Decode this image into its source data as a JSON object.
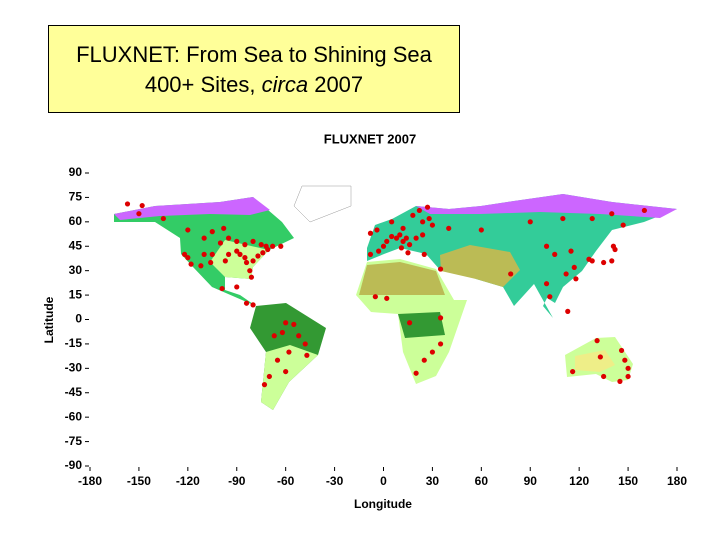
{
  "slide_title": {
    "line1": "FLUXNET: From Sea to Shining Sea",
    "line2_start": "400+ Sites, ",
    "line2_italic": "circa",
    "line2_end": " 2007"
  },
  "chart_data": {
    "type": "scatter",
    "title": "FLUXNET 2007",
    "x_label": "Longitude",
    "y_label": "Latitude",
    "color": "#dd0000",
    "xlim": [
      -180,
      180
    ],
    "ylim": [
      -90,
      90
    ],
    "xticks": [
      -180,
      -150,
      -120,
      -90,
      -60,
      -30,
      0,
      30,
      60,
      90,
      120,
      150,
      180
    ],
    "yticks": [
      -90,
      -75,
      -60,
      -45,
      -30,
      -15,
      0,
      15,
      30,
      45,
      60,
      75,
      90
    ],
    "x": [
      -150,
      -148,
      -157,
      -135,
      -120,
      -105,
      -98,
      -95,
      -90,
      -85,
      -80,
      -75,
      -72,
      -68,
      -63,
      -110,
      -100,
      -105,
      -110,
      -120,
      -122,
      -118,
      -112,
      -106,
      -97,
      -95,
      -90,
      -88,
      -85,
      -84,
      -80,
      -77,
      -74,
      -71,
      -82,
      -81,
      -99,
      -90,
      -84,
      -80,
      -60,
      -55,
      -62,
      -67,
      -52,
      -48,
      -47,
      -58,
      -65,
      -60,
      -70,
      -73,
      -8,
      -3,
      0,
      2,
      5,
      8,
      10,
      12,
      14,
      16,
      20,
      24,
      24,
      28,
      18,
      12,
      -4,
      -8,
      11,
      15,
      25,
      30,
      40,
      22,
      27,
      5,
      -5,
      2,
      16,
      25,
      30,
      35,
      20,
      35,
      35,
      60,
      90,
      110,
      128,
      140,
      160,
      100,
      105,
      115,
      117,
      112,
      118,
      100,
      102,
      113,
      126,
      128,
      135,
      140,
      142,
      141,
      147,
      78,
      131,
      133,
      146,
      148,
      150,
      150,
      145,
      116,
      135
    ],
    "values": [
      65,
      70,
      71,
      62,
      55,
      54,
      56,
      50,
      48,
      46,
      48,
      46,
      45,
      45,
      45,
      50,
      47,
      40,
      40,
      38,
      40,
      34,
      33,
      35,
      36,
      40,
      42,
      40,
      38,
      35,
      36,
      39,
      41,
      43,
      30,
      26,
      19,
      20,
      10,
      9,
      -2,
      -3,
      -8,
      -10,
      -10,
      -15,
      -22,
      -20,
      -25,
      -32,
      -35,
      -40,
      40,
      42,
      45,
      48,
      51,
      50,
      52,
      48,
      50,
      46,
      50,
      52,
      60,
      62,
      64,
      56,
      55,
      53,
      44,
      41,
      40,
      58,
      56,
      67,
      69,
      60,
      14,
      13,
      -2,
      -25,
      -20,
      -15,
      -33,
      31,
      1,
      55,
      60,
      62,
      62,
      65,
      67,
      45,
      40,
      42,
      32,
      28,
      25,
      22,
      14,
      5,
      37,
      36,
      35,
      36,
      43,
      45,
      58,
      28,
      -13,
      -23,
      -19,
      -25,
      -30,
      -35,
      -38,
      -32,
      -35
    ]
  }
}
